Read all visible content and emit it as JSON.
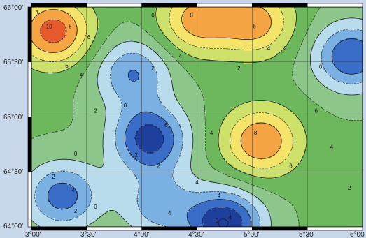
{
  "map": {
    "lat_labels": [
      "66°00'",
      "65°30'",
      "65°00'",
      "64°30'",
      "64°00'"
    ],
    "lon_labels": [
      "3°00'",
      "3°30'",
      "4°00'",
      "4°30'",
      "5°00'",
      "5°30'",
      "6°00'"
    ],
    "contour_labels": [
      {
        "text": "10",
        "lon": 3.16,
        "lat": 65.82
      },
      {
        "text": "8",
        "lon": 3.35,
        "lat": 65.82
      },
      {
        "text": "6",
        "lon": 3.52,
        "lat": 65.72
      },
      {
        "text": "4",
        "lon": 3.05,
        "lat": 65.95
      },
      {
        "text": "6",
        "lon": 3.32,
        "lat": 65.46
      },
      {
        "text": "4",
        "lon": 3.45,
        "lat": 65.38
      },
      {
        "text": "2",
        "lon": 3.58,
        "lat": 65.05
      },
      {
        "text": "0",
        "lon": 3.4,
        "lat": 64.66
      },
      {
        "text": "2",
        "lon": 3.2,
        "lat": 64.45
      },
      {
        "text": "4",
        "lon": 3.38,
        "lat": 64.33
      },
      {
        "text": "0",
        "lon": 3.58,
        "lat": 64.18
      },
      {
        "text": "2",
        "lon": 3.4,
        "lat": 64.14
      },
      {
        "text": "6",
        "lon": 4.1,
        "lat": 65.92
      },
      {
        "text": "8",
        "lon": 4.45,
        "lat": 65.92
      },
      {
        "text": "4",
        "lon": 4.35,
        "lat": 65.55
      },
      {
        "text": "2",
        "lon": 4.1,
        "lat": 65.44
      },
      {
        "text": "0",
        "lon": 3.85,
        "lat": 65.1
      },
      {
        "text": "2",
        "lon": 3.95,
        "lat": 64.65
      },
      {
        "text": "6",
        "lon": 4.22,
        "lat": 64.92
      },
      {
        "text": "2",
        "lon": 4.15,
        "lat": 64.55
      },
      {
        "text": "4",
        "lon": 4.25,
        "lat": 64.12
      },
      {
        "text": "2",
        "lon": 4.88,
        "lat": 65.44
      },
      {
        "text": "6",
        "lon": 5.02,
        "lat": 65.82
      },
      {
        "text": "4",
        "lon": 5.15,
        "lat": 65.62
      },
      {
        "text": "4",
        "lon": 4.63,
        "lat": 64.85
      },
      {
        "text": "8",
        "lon": 5.03,
        "lat": 64.85
      },
      {
        "text": "6",
        "lon": 5.35,
        "lat": 64.55
      },
      {
        "text": "4",
        "lon": 4.7,
        "lat": 64.28
      },
      {
        "text": "0",
        "lon": 4.68,
        "lat": 64.05
      },
      {
        "text": "4",
        "lon": 4.8,
        "lat": 64.08
      },
      {
        "text": "2",
        "lon": 5.3,
        "lat": 65.62
      },
      {
        "text": "0",
        "lon": 5.62,
        "lat": 65.45
      },
      {
        "text": "6",
        "lon": 5.58,
        "lat": 65.05
      },
      {
        "text": "4",
        "lon": 5.72,
        "lat": 64.72
      },
      {
        "text": "2",
        "lon": 5.88,
        "lat": 64.35
      },
      {
        "text": "4",
        "lon": 4.5,
        "lat": 64.4
      }
    ],
    "anomaly_centers": [
      {
        "lon": 3.2,
        "lat": 65.78,
        "value": 11
      },
      {
        "lon": 4.5,
        "lat": 65.88,
        "value": 9
      },
      {
        "lon": 5.03,
        "lat": 65.86,
        "value": 9
      },
      {
        "lon": 5.08,
        "lat": 64.78,
        "value": 10
      },
      {
        "lon": 4.07,
        "lat": 64.8,
        "value": -7
      },
      {
        "lon": 4.75,
        "lat": 64.03,
        "value": -8
      },
      {
        "lon": 5.9,
        "lat": 65.55,
        "value": -6
      },
      {
        "lon": 3.92,
        "lat": 65.4,
        "value": -4
      },
      {
        "lon": 3.28,
        "lat": 64.28,
        "value": -5
      },
      {
        "lon": 4.15,
        "lat": 64.2,
        "value": -3
      }
    ],
    "color_scale": [
      "#1f3f9c",
      "#3a6dc8",
      "#7ab0e2",
      "#b9dcec",
      "#8cc68a",
      "#6db85c",
      "#cde06a",
      "#f5e46a",
      "#f5a443",
      "#e75a2e",
      "#c52a23"
    ]
  }
}
